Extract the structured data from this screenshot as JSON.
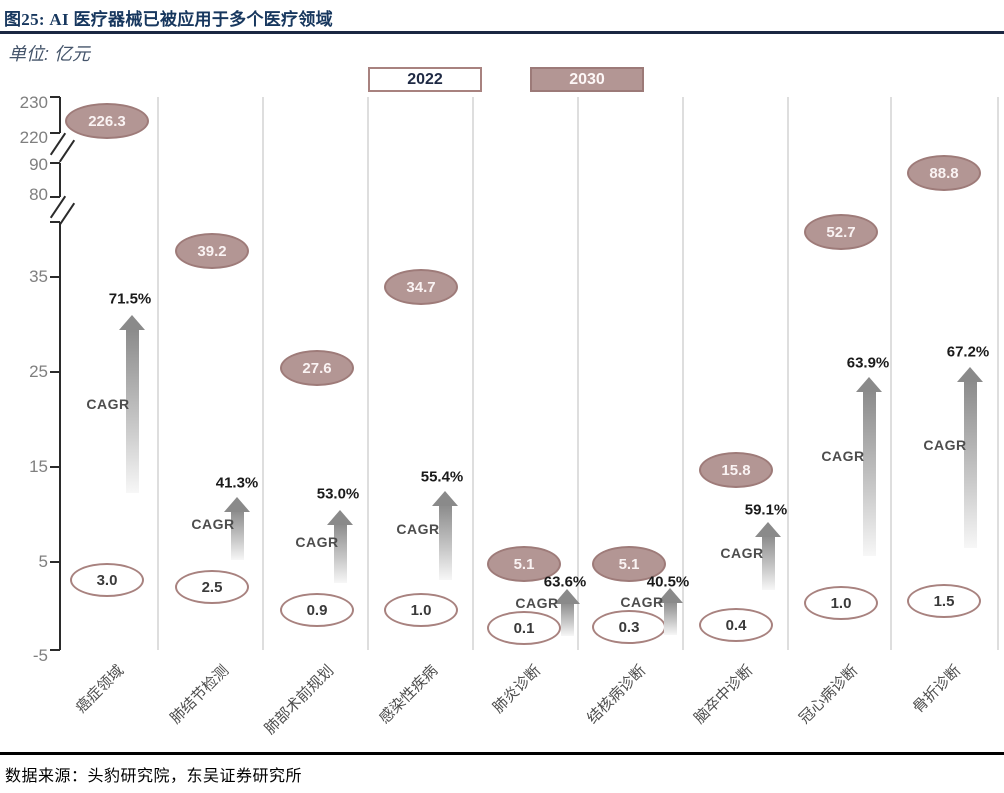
{
  "figure": {
    "title": "图25:  AI 医疗器械已被应用于多个医疗领域",
    "unit_label": "单位: 亿元",
    "source": "数据来源：头豹研究院，东吴证券研究所"
  },
  "y_axis": {
    "tick_labels": [
      "230",
      "220",
      "90",
      "80",
      "35",
      "25",
      "15",
      "5",
      "-5"
    ]
  },
  "chart_data": {
    "type": "scatter",
    "title": "AI 医疗器械已被应用于多个医疗领域",
    "unit": "亿元",
    "legend_position": "top",
    "grid": "vertical-category-separators",
    "categories": [
      "癌症领域",
      "肺结节检测",
      "肺部术前规划",
      "感染性疾病",
      "肺炎诊断",
      "结核病诊断",
      "脑卒中诊断",
      "冠心病诊断",
      "骨折诊断"
    ],
    "series": [
      {
        "name": "2022",
        "style": "outline-ellipse",
        "values": [
          3.0,
          2.5,
          0.9,
          1.0,
          0.1,
          0.3,
          0.4,
          1.0,
          1.5
        ]
      },
      {
        "name": "2030",
        "style": "filled-ellipse",
        "values": [
          226.3,
          39.2,
          27.6,
          34.7,
          5.1,
          5.1,
          15.8,
          52.7,
          88.8
        ]
      }
    ],
    "cagr_label": "CAGR",
    "cagr_percent": [
      71.5,
      41.3,
      53.0,
      55.4,
      63.6,
      40.5,
      59.1,
      63.9,
      67.2
    ],
    "y_axis_ticks": [
      230,
      220,
      90,
      80,
      35,
      25,
      15,
      5,
      -5
    ],
    "axis_breaks": [
      [
        220,
        90
      ],
      [
        80,
        35
      ]
    ],
    "colors": {
      "filled_ellipse": "#b39694",
      "filled_ellipse_border": "#9e7b79",
      "outline_ellipse_border": "#a8827f",
      "arrow_gray": "#8a8a8a",
      "title_navy": "#17375e",
      "gridline": "#dedede"
    }
  }
}
